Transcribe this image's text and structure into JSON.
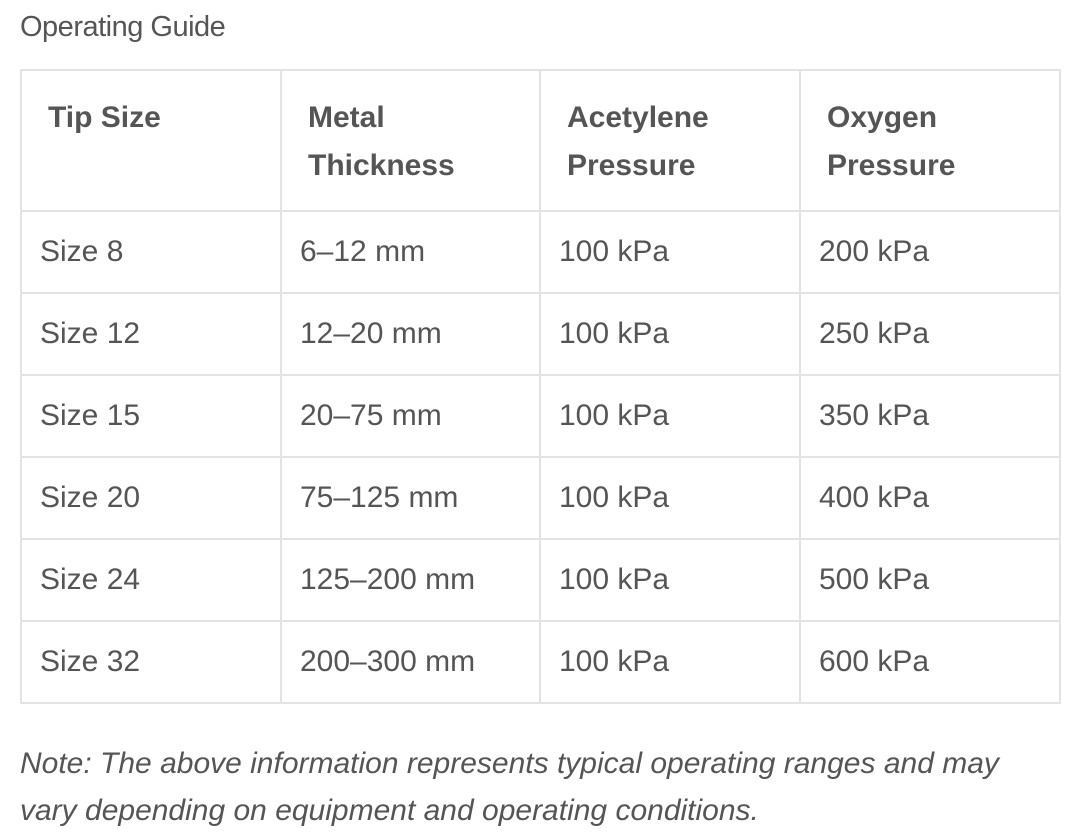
{
  "title": "Operating Guide",
  "table": {
    "header": [
      "Tip Size",
      "Metal Thickness",
      "Acetylene Pressure",
      "Oxygen Pressure"
    ],
    "rows": [
      [
        "Size 8",
        "6–12 mm",
        "100 kPa",
        "200 kPa"
      ],
      [
        "Size 12",
        "12–20 mm",
        "100 kPa",
        "250 kPa"
      ],
      [
        "Size 15",
        "20–75 mm",
        "100 kPa",
        "350 kPa"
      ],
      [
        "Size 20",
        "75–125 mm",
        "100 kPa",
        "400 kPa"
      ],
      [
        "Size 24",
        "125–200 mm",
        "100 kPa",
        "500 kPa"
      ],
      [
        "Size 32",
        "200–300 mm",
        "100 kPa",
        "600 kPa"
      ]
    ]
  },
  "note": "Note: The above information represents typical operating ranges and may vary depending on equipment and operating conditions."
}
